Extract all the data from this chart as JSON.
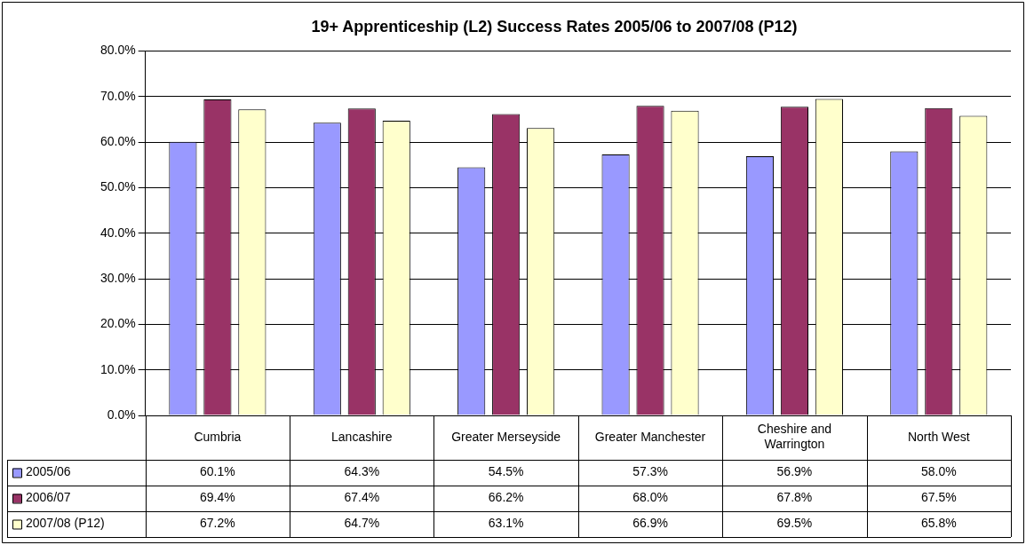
{
  "chart_data": {
    "type": "bar",
    "title": "19+ Apprenticeship (L2) Success Rates 2005/06 to 2007/08 (P12)",
    "categories": [
      "Cumbria",
      "Lancashire",
      "Greater Merseyside",
      "Greater Manchester",
      "Cheshire and Warrington",
      "North West"
    ],
    "series": [
      {
        "name": "2005/06",
        "color": "#9999ff",
        "values": [
          60.1,
          64.3,
          54.5,
          57.3,
          56.9,
          58.0
        ],
        "value_labels": [
          "60.1%",
          "64.3%",
          "54.5%",
          "57.3%",
          "56.9%",
          "58.0%"
        ]
      },
      {
        "name": "2006/07",
        "color": "#993366",
        "values": [
          69.4,
          67.4,
          66.2,
          68.0,
          67.8,
          67.5
        ],
        "value_labels": [
          "69.4%",
          "67.4%",
          "66.2%",
          "68.0%",
          "67.8%",
          "67.5%"
        ]
      },
      {
        "name": "2007/08 (P12)",
        "color": "#ffffcc",
        "values": [
          67.2,
          64.7,
          63.1,
          66.9,
          69.5,
          65.8
        ],
        "value_labels": [
          "67.2%",
          "64.7%",
          "63.1%",
          "66.9%",
          "69.5%",
          "65.8%"
        ]
      }
    ],
    "ylim": [
      0,
      80
    ],
    "yticks": [
      {
        "value": 0,
        "label": "0.0%"
      },
      {
        "value": 10,
        "label": "10.0%"
      },
      {
        "value": 20,
        "label": "20.0%"
      },
      {
        "value": 30,
        "label": "30.0%"
      },
      {
        "value": 40,
        "label": "40.0%"
      },
      {
        "value": 50,
        "label": "50.0%"
      },
      {
        "value": 60,
        "label": "60.0%"
      },
      {
        "value": 70,
        "label": "70.0%"
      },
      {
        "value": 80,
        "label": "80.0%"
      }
    ],
    "grid": "y",
    "legend": "bottom left"
  }
}
